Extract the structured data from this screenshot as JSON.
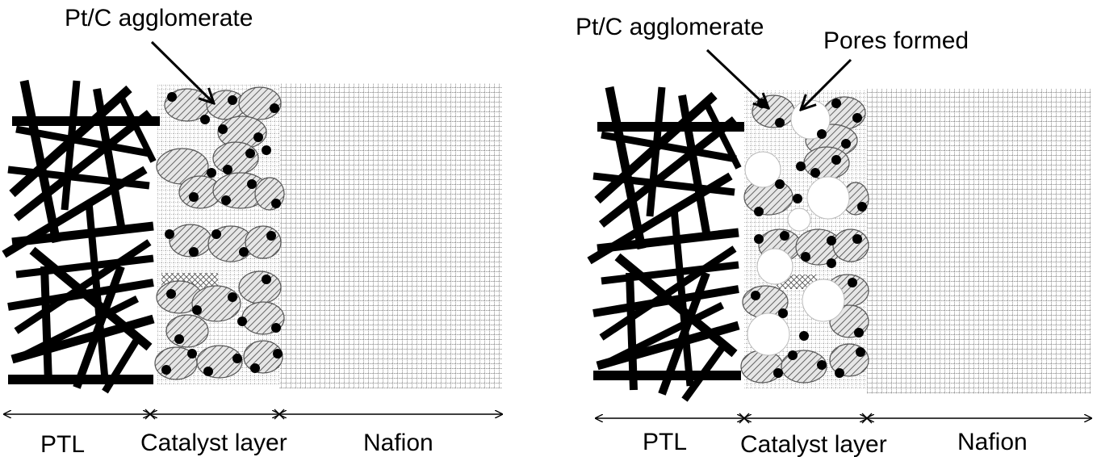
{
  "panels": [
    {
      "id": "before",
      "annotations": {
        "agglomerate": "Pt/C agglomerate"
      },
      "labels": {
        "ptl": "PTL",
        "catalyst": "Catalyst layer",
        "nafion": "Nafion"
      }
    },
    {
      "id": "after",
      "annotations": {
        "agglomerate": "Pt/C agglomerate",
        "pores": "Pores formed"
      },
      "labels": {
        "ptl": "PTL",
        "catalyst": "Catalyst layer",
        "nafion": "Nafion"
      }
    }
  ],
  "colors": {
    "ink": "#000000",
    "agglomerate_fill": "#d4d4d4",
    "pore_fill": "#ffffff",
    "grid": "#777777"
  }
}
